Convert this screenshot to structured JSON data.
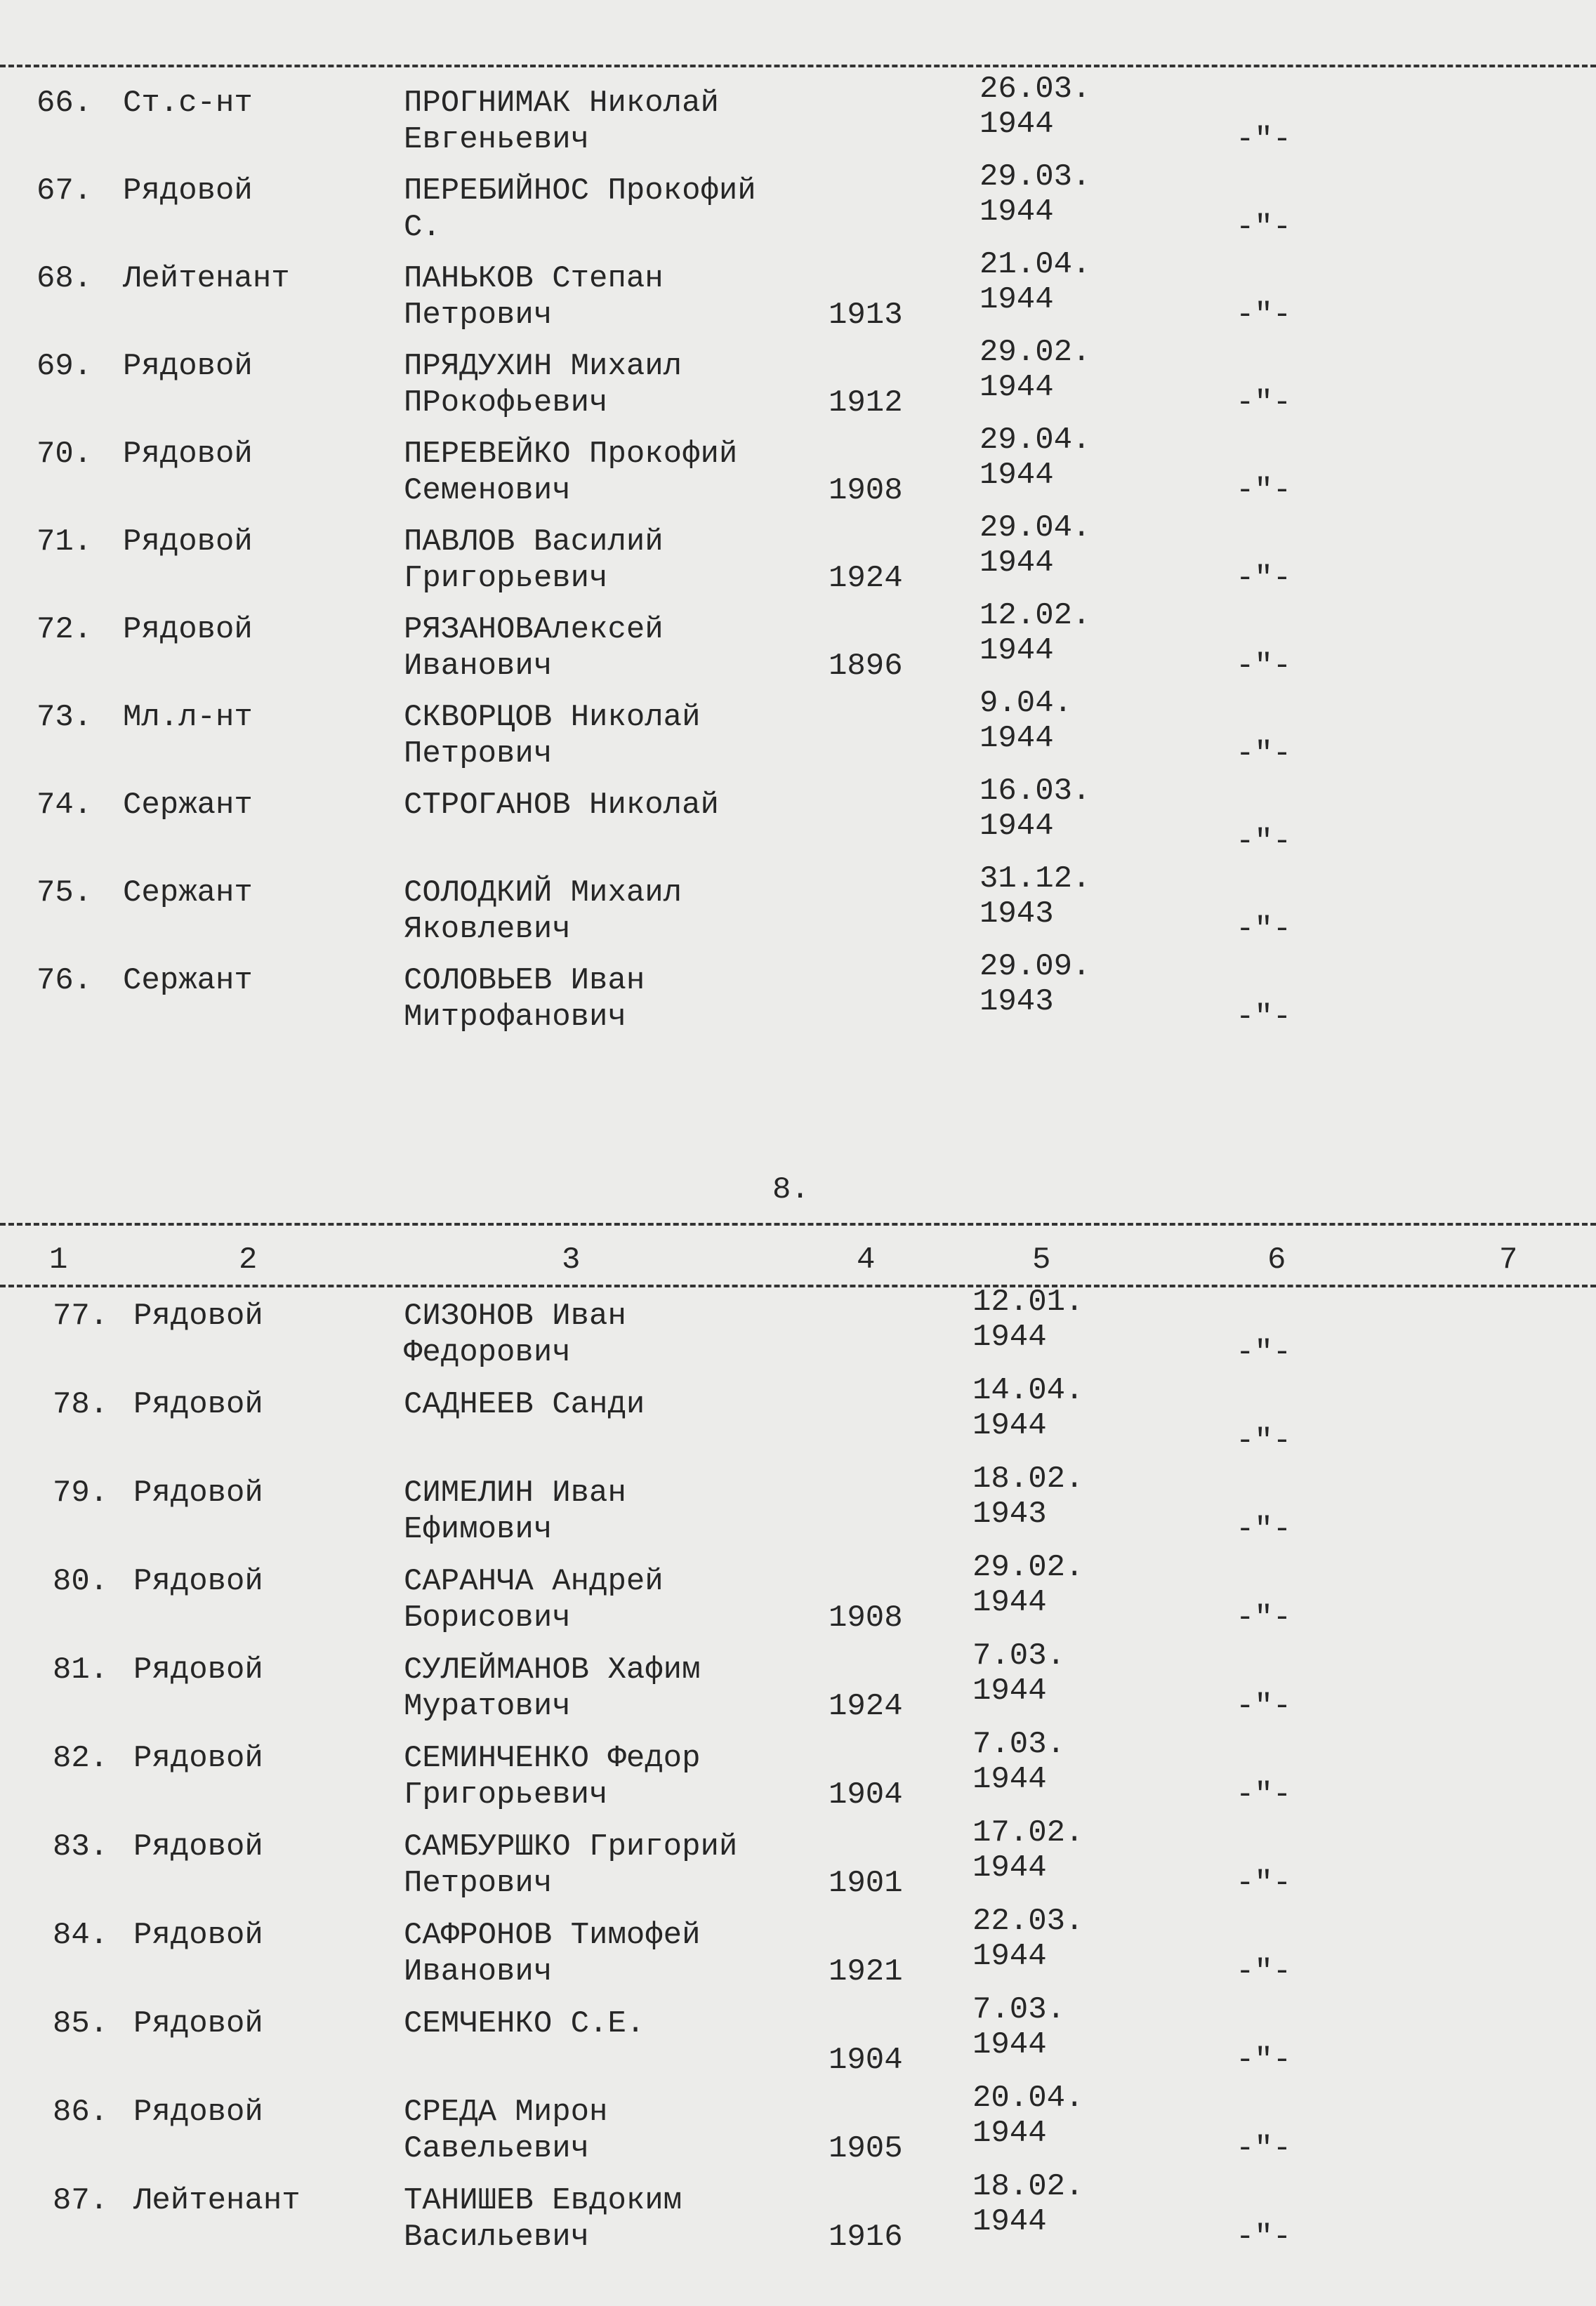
{
  "sections": [
    {
      "rows": [
        {
          "no": "66.",
          "rank": "Ст.с-нт",
          "name": [
            "ПРОГНИМАК Николай",
            "Евгеньевич"
          ],
          "date": [
            "26.03.",
            "1944"
          ],
          "note": "-\"-"
        },
        {
          "no": "67.",
          "rank": "Рядовой",
          "name": [
            "ПЕРЕБИЙНОС Прокофий",
            "С."
          ],
          "date": [
            "29.03.",
            "1944"
          ],
          "note": "-\"-"
        },
        {
          "no": "68.",
          "rank": "Лейтенант",
          "name": [
            "ПАНЬКОВ Степан",
            "Петрович"
          ],
          "year": "1913",
          "date": [
            "21.04.",
            "1944"
          ],
          "note": "-\"-"
        },
        {
          "no": "69.",
          "rank": "Рядовой",
          "name": [
            "ПРЯДУХИН Михаил",
            "ПРокофьевич"
          ],
          "year": "1912",
          "date": [
            "29.02.",
            "1944"
          ],
          "note": "-\"-"
        },
        {
          "no": "70.",
          "rank": "Рядовой",
          "name": [
            "ПЕРЕВЕЙКО Прокофий",
            "Семенович"
          ],
          "year": "1908",
          "date": [
            "29.04.",
            "1944"
          ],
          "note": "-\"-"
        },
        {
          "no": "71.",
          "rank": "Рядовой",
          "name": [
            "ПАВЛОВ Василий",
            "Григорьевич"
          ],
          "year": "1924",
          "date": [
            "29.04.",
            "1944"
          ],
          "note": "-\"-"
        },
        {
          "no": "72.",
          "rank": "Рядовой",
          "name": [
            "РЯЗАНОВАлексей",
            "Иванович"
          ],
          "year": "1896",
          "date": [
            "12.02.",
            "1944"
          ],
          "note": "-\"-"
        },
        {
          "no": "73.",
          "rank": "Мл.л-нт",
          "name": [
            "СКВОРЦОВ Николай",
            "Петрович"
          ],
          "date": [
            "9.04.",
            "1944"
          ],
          "note": "-\"-"
        },
        {
          "no": "74.",
          "rank": "Сержант",
          "name": [
            "СТРОГАНОВ Николай"
          ],
          "date": [
            "16.03.",
            "1944"
          ],
          "note": "-\"-"
        },
        {
          "no": "75.",
          "rank": "Сержант",
          "name": [
            "СОЛОДКИЙ Михаил",
            "Яковлевич"
          ],
          "date": [
            "31.12.",
            "1943"
          ],
          "note": "-\"-"
        },
        {
          "no": "76.",
          "rank": "Сержант",
          "name": [
            "СОЛОВЬЕВ Иван",
            "Митрофанович"
          ],
          "date": [
            "29.09.",
            "1943"
          ],
          "note": "-\"-"
        }
      ]
    },
    {
      "rows": [
        {
          "no": "77.",
          "rank": "Рядовой",
          "name": [
            "СИЗОНОВ Иван",
            "Федорович"
          ],
          "date": [
            "12.01.",
            "1944"
          ],
          "note": "-\"-"
        },
        {
          "no": "78.",
          "rank": "Рядовой",
          "name": [
            "САДНЕЕВ Санди"
          ],
          "date": [
            "14.04.",
            "1944"
          ],
          "note": "-\"-"
        },
        {
          "no": "79.",
          "rank": "Рядовой",
          "name": [
            "СИМЕЛИН Иван",
            "Ефимович"
          ],
          "date": [
            "18.02.",
            "1943"
          ],
          "note": "-\"-"
        },
        {
          "no": "80.",
          "rank": "Рядовой",
          "name": [
            "САРАНЧА Андрей",
            "Борисович"
          ],
          "year": "1908",
          "date": [
            "29.02.",
            "1944"
          ],
          "note": "-\"-"
        },
        {
          "no": "81.",
          "rank": "Рядовой",
          "name": [
            "СУЛЕЙМАНОВ Хафим",
            "Муратович"
          ],
          "year": "1924",
          "date": [
            "7.03.",
            "1944"
          ],
          "note": "-\"-"
        },
        {
          "no": "82.",
          "rank": "Рядовой",
          "name": [
            "СЕМИНЧЕНКО Федор",
            "Григорьевич"
          ],
          "year": "1904",
          "date": [
            "7.03.",
            "1944"
          ],
          "note": "-\"-"
        },
        {
          "no": "83.",
          "rank": "Рядовой",
          "name": [
            "САМБУРШКО Григорий",
            "Петрович"
          ],
          "year": "1901",
          "date": [
            "17.02.",
            "1944"
          ],
          "note": "-\"-"
        },
        {
          "no": "84.",
          "rank": "Рядовой",
          "name": [
            "САФРОНОВ Тимофей",
            "Иванович"
          ],
          "year": "1921",
          "date": [
            "22.03.",
            "1944"
          ],
          "note": "-\"-"
        },
        {
          "no": "85.",
          "rank": "Рядовой",
          "name": [
            "СЕМЧЕНКО С.Е."
          ],
          "year": "1904",
          "date": [
            "7.03.",
            "1944"
          ],
          "note": "-\"-"
        },
        {
          "no": "86.",
          "rank": "Рядовой",
          "name": [
            "СРЕДА Мирон",
            "Савельевич"
          ],
          "year": "1905",
          "date": [
            "20.04.",
            "1944"
          ],
          "note": "-\"-"
        },
        {
          "no": "87.",
          "rank": "Лейтенант",
          "name": [
            "ТАНИШЕВ Евдоким",
            "Васильевич"
          ],
          "year": "1916",
          "date": [
            "18.02.",
            "1944"
          ],
          "note": "-\"-"
        }
      ]
    }
  ],
  "page_number": "8.",
  "header_columns": [
    "1",
    "2",
    "3",
    "4",
    "5",
    "6",
    "7"
  ]
}
